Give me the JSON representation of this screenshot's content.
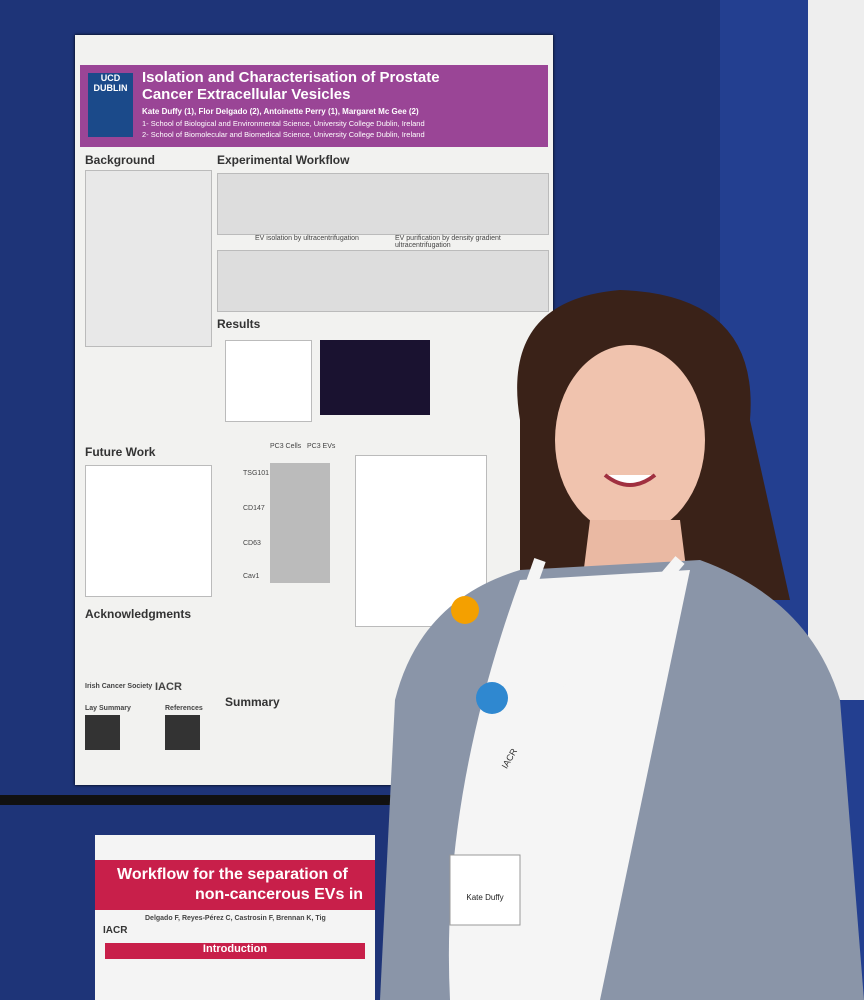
{
  "poster": {
    "logo": "UCD DUBLIN",
    "title": "Isolation and Characterisation of Prostate Cancer Extracellular Vesicles",
    "authors": "Kate Duffy (1), Flor Delgado (2), Antoinette Perry (1), Margaret Mc Gee (2)",
    "affiliations": [
      "1- School of Biological and Environmental Science, University College Dublin, Ireland",
      "2- School of Biomolecular and Biomedical Science, University College Dublin, Ireland"
    ],
    "sections": [
      "Background",
      "Experimental Workflow",
      "Results",
      "Future Work",
      "Acknowledgments",
      "Summary"
    ],
    "workflow_captions": [
      "EV isolation by ultracentrifugation",
      "EV purification by density gradient ultracentrifugation"
    ],
    "blot_labels": [
      "PC3 Cells",
      "PC3 EVs",
      "TSG101",
      "CD147",
      "CD63",
      "Cav1"
    ],
    "logos": [
      "Irish Cancer Society",
      "IACR"
    ],
    "footer": [
      "Lay Summary",
      "References"
    ]
  },
  "poster2": {
    "title": [
      "Workflow for the separation of",
      "non-cancerous EVs in"
    ],
    "authors": "Delgado F, Reyes-Pérez C, Castrosin F, Brennan K, Tig",
    "logo": "IACR",
    "section": "Introduction"
  },
  "badge": {
    "name": "Kate Duffy",
    "lanyard": "IACR"
  }
}
